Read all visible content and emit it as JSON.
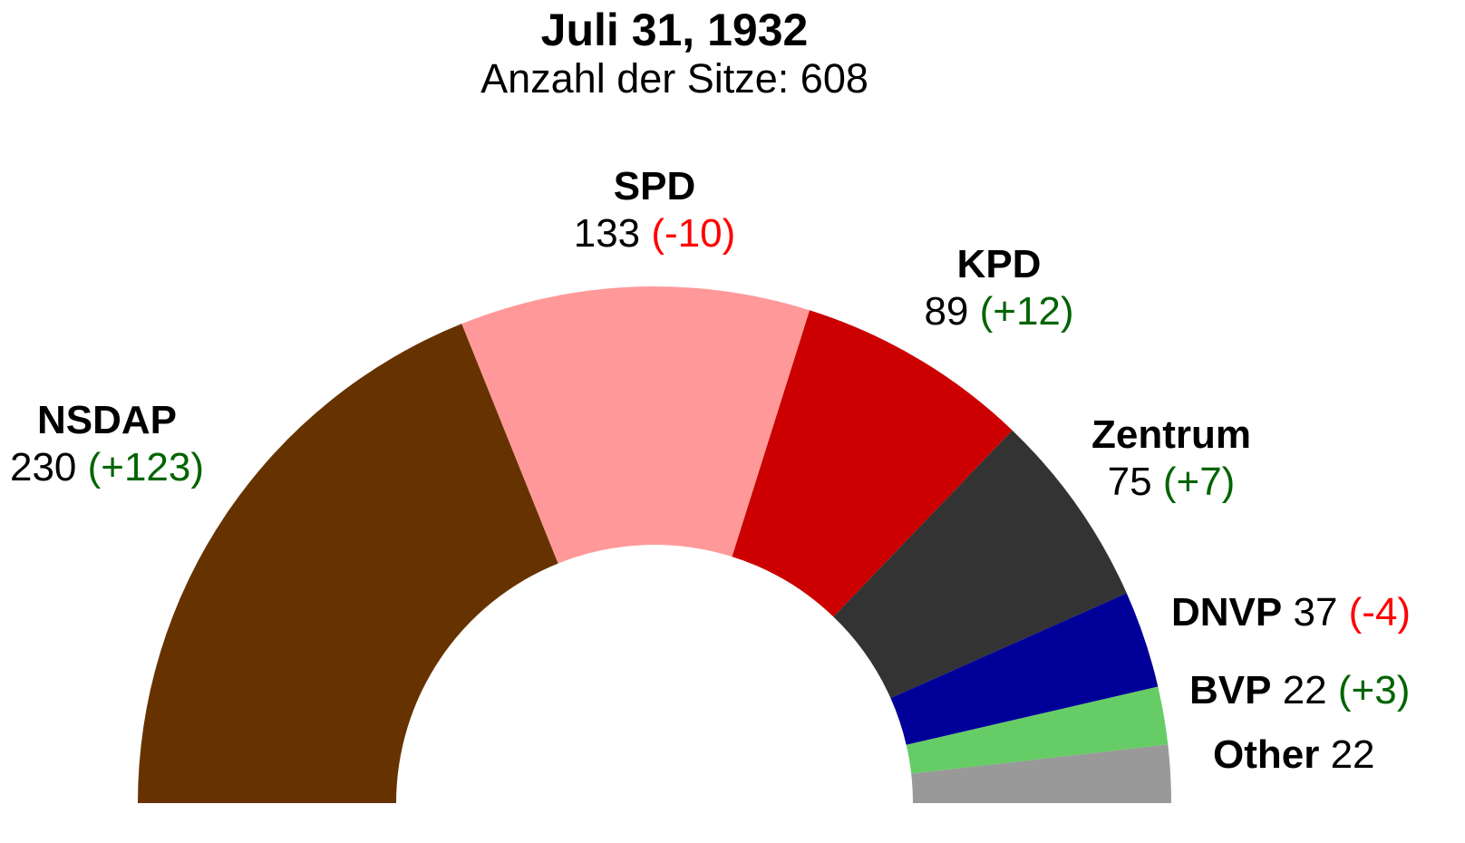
{
  "chart_data": {
    "type": "pie",
    "title": "Juli 31, 1932",
    "subtitle": "Anzahl der Sitze: 608",
    "series": [
      {
        "name": "NSDAP",
        "seats": 230,
        "change": "(+123)",
        "change_color": "#006400",
        "color": "#663300"
      },
      {
        "name": "SPD",
        "seats": 133,
        "change": "(-10)",
        "change_color": "#ff0000",
        "color": "#ff9999"
      },
      {
        "name": "KPD",
        "seats": 89,
        "change": "(+12)",
        "change_color": "#006400",
        "color": "#cc0000"
      },
      {
        "name": "Zentrum",
        "seats": 75,
        "change": "(+7)",
        "change_color": "#006400",
        "color": "#333333"
      },
      {
        "name": "DNVP",
        "seats": 37,
        "change": "(-4)",
        "change_color": "#ff0000",
        "color": "#000099"
      },
      {
        "name": "BVP",
        "seats": 22,
        "change": "(+3)",
        "change_color": "#006400",
        "color": "#66cc66"
      },
      {
        "name": "Other",
        "seats": 22,
        "change": "",
        "change_color": "#006400",
        "color": "#999999"
      }
    ]
  }
}
